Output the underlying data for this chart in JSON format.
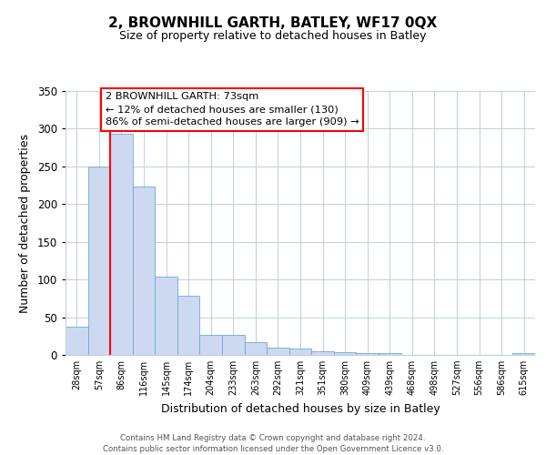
{
  "title": "2, BROWNHILL GARTH, BATLEY, WF17 0QX",
  "subtitle": "Size of property relative to detached houses in Batley",
  "xlabel": "Distribution of detached houses by size in Batley",
  "ylabel": "Number of detached properties",
  "categories": [
    "28sqm",
    "57sqm",
    "86sqm",
    "116sqm",
    "145sqm",
    "174sqm",
    "204sqm",
    "233sqm",
    "263sqm",
    "292sqm",
    "321sqm",
    "351sqm",
    "380sqm",
    "409sqm",
    "439sqm",
    "468sqm",
    "498sqm",
    "527sqm",
    "556sqm",
    "586sqm",
    "615sqm"
  ],
  "values": [
    38,
    250,
    293,
    223,
    104,
    78,
    27,
    27,
    17,
    10,
    9,
    5,
    4,
    3,
    3,
    0,
    0,
    0,
    0,
    0,
    2
  ],
  "bar_color": "#ccd9f0",
  "bar_edge_color": "#6fa8d6",
  "ylim": [
    0,
    350
  ],
  "yticks": [
    0,
    50,
    100,
    150,
    200,
    250,
    300,
    350
  ],
  "annotation_title": "2 BROWNHILL GARTH: 73sqm",
  "annotation_line1": "← 12% of detached houses are smaller (130)",
  "annotation_line2": "86% of semi-detached houses are larger (909) →",
  "footer_line1": "Contains HM Land Registry data © Crown copyright and database right 2024.",
  "footer_line2": "Contains public sector information licensed under the Open Government Licence v3.0.",
  "background_color": "#ffffff",
  "grid_color": "#c0cfe0",
  "title_fontsize": 11,
  "subtitle_fontsize": 9
}
